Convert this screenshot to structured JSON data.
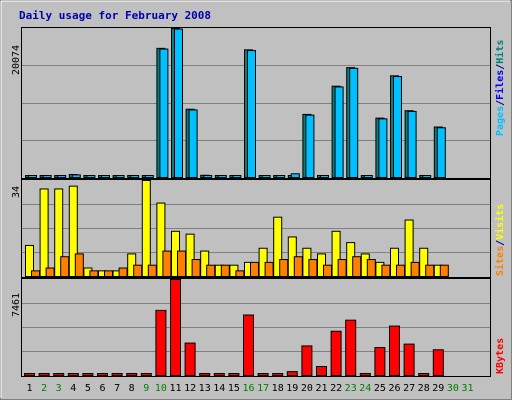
{
  "chart_data": {
    "type": "bar",
    "title": "Daily usage for February 2008",
    "categories": [
      "1",
      "2",
      "3",
      "4",
      "5",
      "6",
      "7",
      "8",
      "9",
      "10",
      "11",
      "12",
      "13",
      "14",
      "15",
      "16",
      "17",
      "18",
      "19",
      "20",
      "21",
      "22",
      "23",
      "24",
      "25",
      "26",
      "27",
      "28",
      "29",
      "30",
      "31"
    ],
    "weekend_days": [
      "2",
      "3",
      "9",
      "10",
      "16",
      "17",
      "23",
      "24",
      "30",
      "31"
    ],
    "panels": [
      {
        "id": "hits-files-pages",
        "max_label": "20074",
        "ylim": [
          0,
          20074
        ],
        "legend": [
          {
            "name": "Pages",
            "color": "#00c0ff"
          },
          {
            "name": "/",
            "color": "#000080"
          },
          {
            "name": "Files",
            "color": "#0000ff"
          },
          {
            "name": "/",
            "color": "#000080"
          },
          {
            "name": "Hits",
            "color": "#008080"
          }
        ],
        "series": [
          {
            "name": "Hits",
            "color": "#008080",
            "values": [
              200,
              200,
              200,
              400,
              200,
              200,
              200,
              200,
              200,
              17400,
              20074,
              9200,
              300,
              200,
              200,
              17200,
              200,
              200,
              200,
              8500,
              200,
              12300,
              14800,
              200,
              8000,
              13700,
              9000,
              200,
              6800,
              0,
              0
            ]
          },
          {
            "name": "Files",
            "color": "#00c0ff",
            "values": [
              150,
              150,
              150,
              350,
              150,
              150,
              150,
              150,
              150,
              17300,
              20000,
              9100,
              250,
              150,
              150,
              17100,
              150,
              150,
              500,
              8400,
              150,
              12200,
              14700,
              150,
              7900,
              13600,
              8900,
              150,
              6700,
              0,
              0
            ]
          }
        ]
      },
      {
        "id": "visits-sites",
        "max_label": "34",
        "ylim": [
          0,
          34
        ],
        "legend": [
          {
            "name": "Sites",
            "color": "#ff8000"
          },
          {
            "name": "/",
            "color": "#000080"
          },
          {
            "name": "Visits",
            "color": "#ffff00"
          }
        ],
        "series": [
          {
            "name": "Visits",
            "color": "#ffff00",
            "values": [
              11,
              31,
              31,
              32,
              3,
              2,
              2,
              8,
              34,
              26,
              16,
              15,
              9,
              4,
              4,
              5,
              10,
              21,
              14,
              10,
              8,
              16,
              12,
              8,
              5,
              10,
              20,
              10,
              4,
              0,
              0
            ]
          },
          {
            "name": "Sites",
            "color": "#ff8000",
            "values": [
              2,
              3,
              7,
              8,
              2,
              2,
              3,
              4,
              4,
              9,
              9,
              6,
              4,
              4,
              2,
              5,
              5,
              6,
              7,
              6,
              4,
              6,
              7,
              6,
              4,
              4,
              5,
              4,
              4,
              0,
              0
            ]
          }
        ]
      },
      {
        "id": "kbytes",
        "max_label": "7461",
        "ylim": [
          0,
          7461
        ],
        "legend": [
          {
            "name": "KBytes",
            "color": "#ff0000"
          }
        ],
        "series": [
          {
            "name": "KBytes",
            "color": "#ff0000",
            "values": [
              80,
              80,
              80,
              150,
              80,
              80,
              80,
              120,
              120,
              5060,
              7461,
              2520,
              120,
              80,
              80,
              4700,
              80,
              150,
              300,
              2300,
              700,
              3440,
              4300,
              80,
              2170,
              3840,
              2440,
              80,
              2000,
              0,
              0
            ]
          }
        ]
      }
    ]
  }
}
